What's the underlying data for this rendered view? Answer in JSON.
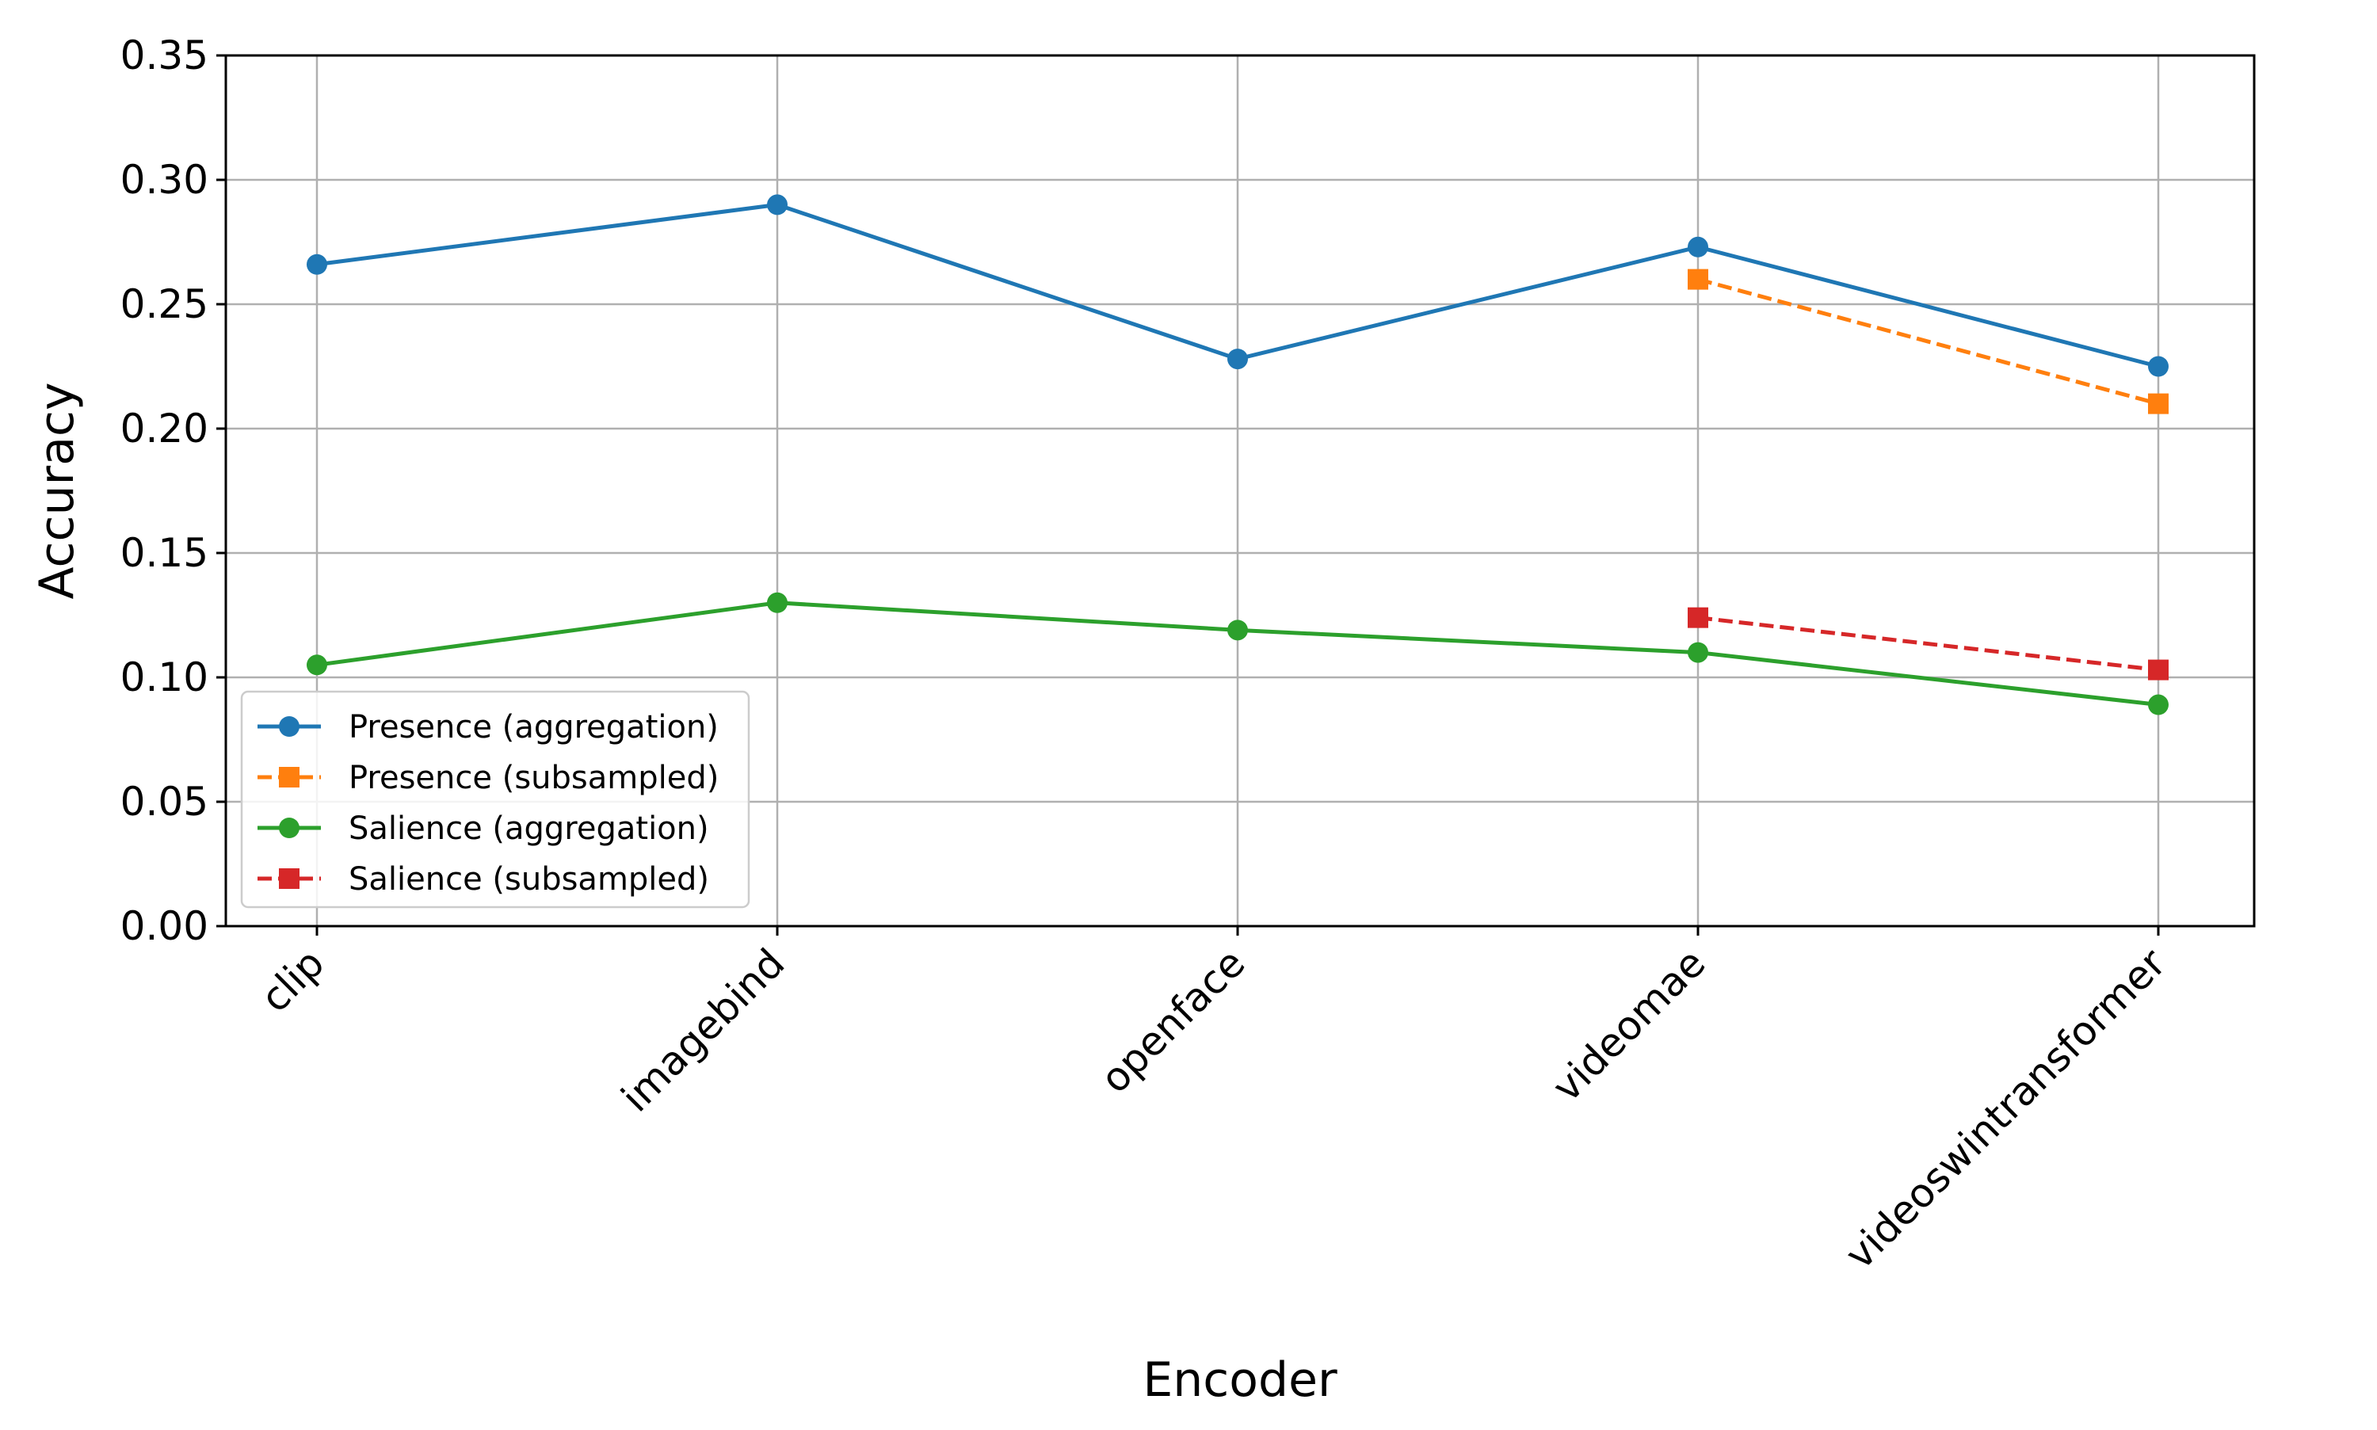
{
  "chart_data": {
    "type": "line",
    "title": "",
    "xlabel": "Encoder",
    "ylabel": "Accuracy",
    "categories": [
      "clip",
      "imagebind",
      "openface",
      "videomae",
      "videoswintransformer"
    ],
    "ylim": [
      0,
      0.35
    ],
    "yticks": [
      "0.00",
      "0.05",
      "0.10",
      "0.15",
      "0.20",
      "0.25",
      "0.30",
      "0.35"
    ],
    "grid": true,
    "legend_position": "lower-left",
    "series": [
      {
        "name": "Presence (aggregation)",
        "color": "#1f77b4",
        "style": "solid",
        "marker": "circle",
        "values": [
          0.266,
          0.29,
          0.228,
          0.273,
          0.225
        ]
      },
      {
        "name": "Presence (subsampled)",
        "color": "#ff7f0e",
        "style": "dashed",
        "marker": "square",
        "values": [
          null,
          null,
          null,
          0.26,
          0.21
        ]
      },
      {
        "name": "Salience (aggregation)",
        "color": "#2ca02c",
        "style": "solid",
        "marker": "circle",
        "values": [
          0.105,
          0.13,
          0.119,
          0.11,
          0.089
        ]
      },
      {
        "name": "Salience (subsampled)",
        "color": "#d62728",
        "style": "dashed",
        "marker": "square",
        "values": [
          null,
          null,
          null,
          0.124,
          0.103
        ]
      }
    ]
  }
}
